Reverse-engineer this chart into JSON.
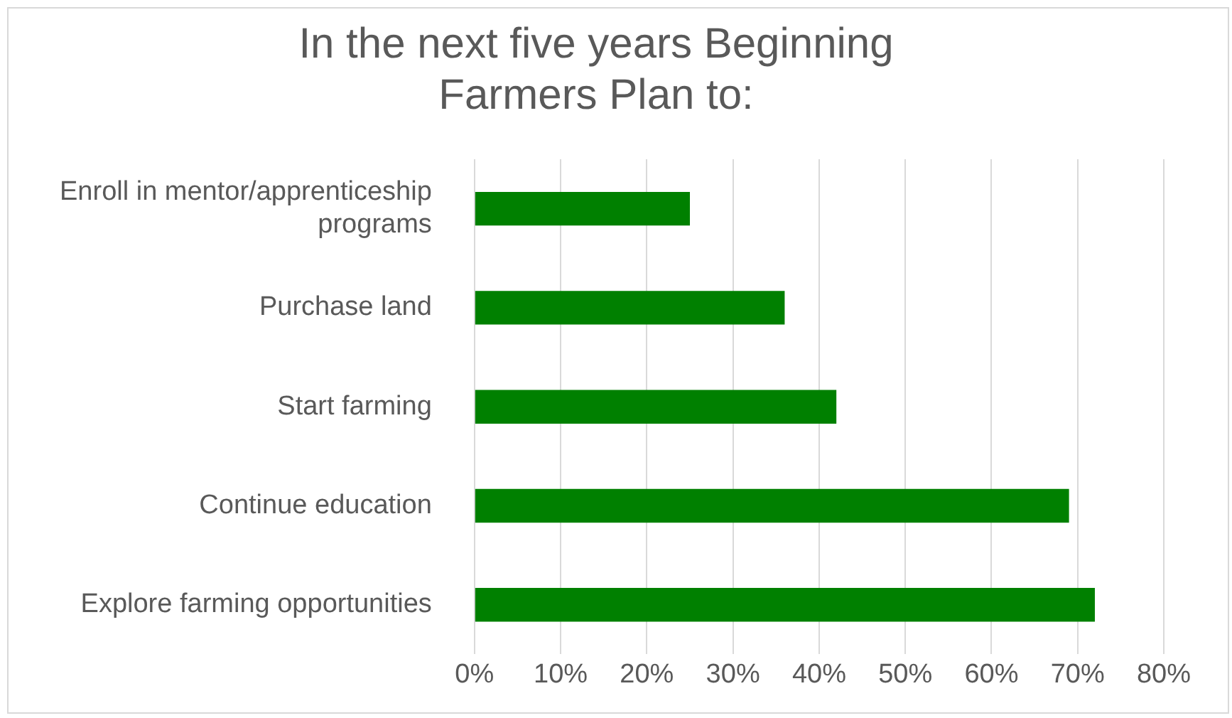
{
  "chart_data": {
    "type": "bar",
    "orientation": "horizontal",
    "title": "In the next five years Beginning Farmers Plan to:",
    "categories": [
      "Enroll in mentor/apprenticeship programs",
      "Purchase land",
      "Start farming",
      "Continue education",
      "Explore farming opportunities"
    ],
    "values": [
      25,
      36,
      42,
      69,
      72
    ],
    "color": "#008000",
    "xlim": [
      0,
      80
    ],
    "xticks": [
      {
        "value": 0,
        "label": "0%"
      },
      {
        "value": 10,
        "label": "10%"
      },
      {
        "value": 20,
        "label": "20%"
      },
      {
        "value": 30,
        "label": "30%"
      },
      {
        "value": 40,
        "label": "40%"
      },
      {
        "value": 50,
        "label": "50%"
      },
      {
        "value": 60,
        "label": "60%"
      },
      {
        "value": 70,
        "label": "70%"
      },
      {
        "value": 80,
        "label": "80%"
      }
    ],
    "grid": "x",
    "legend": false
  }
}
